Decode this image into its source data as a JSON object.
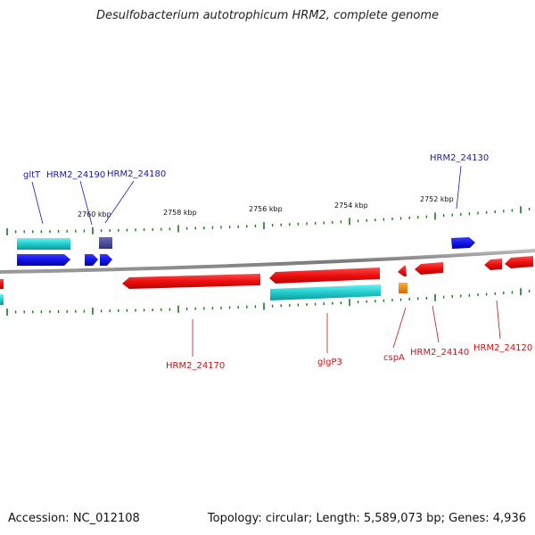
{
  "title": "Desulfobacterium autotrophicum HRM2, complete genome",
  "footer": {
    "accession": "Accession: NC_012108",
    "summary": "Topology: circular; Length: 5,589,073 bp; Genes: 4,936"
  },
  "scale_labels": [
    "2760 kbp",
    "2758 kbp",
    "2756 kbp",
    "2754 kbp",
    "2752 kbp"
  ],
  "top_labels": [
    "gltT",
    "HRM2_24190",
    "HRM2_24180",
    "HRM2_24130"
  ],
  "bottom_labels": [
    "HRM2_24170",
    "glgP3",
    "cspA",
    "HRM2_24140",
    "HRM2_24120"
  ],
  "colors": {
    "forward_gene": "#1414e6",
    "reverse_gene": "#ee1111",
    "forward_feature": "#22cccc",
    "dark_feature": "#4a4a9a",
    "orange_feature": "#f08a10",
    "top_label": "#1a1aaa",
    "bottom_label": "#cc1111",
    "tick": "#1a7a1a",
    "backbone": "#888888"
  }
}
